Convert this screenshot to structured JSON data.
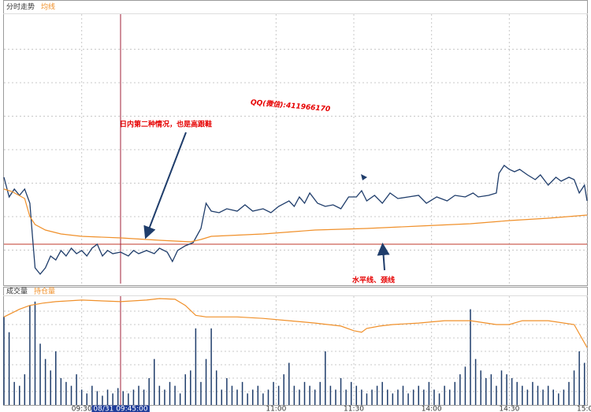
{
  "chart_data": [
    {
      "type": "line",
      "xlim": [
        0,
        225
      ],
      "ylim": [
        0,
        340
      ],
      "hline": {
        "value": 50,
        "color": "#c0392b"
      },
      "series": [
        {
          "name": "分时走势",
          "color": "#1f3d6b",
          "x": [
            0,
            2,
            4,
            6,
            8,
            10,
            11,
            12,
            14,
            16,
            18,
            20,
            22,
            24,
            26,
            28,
            30,
            32,
            34,
            36,
            38,
            40,
            42,
            45,
            48,
            50,
            52,
            55,
            58,
            60,
            63,
            65,
            67,
            70,
            73,
            76,
            78,
            80,
            83,
            86,
            90,
            93,
            96,
            100,
            103,
            106,
            110,
            112,
            114,
            116,
            118,
            121,
            124,
            127,
            130,
            133,
            136,
            138,
            140,
            143,
            146,
            149,
            152,
            156,
            160,
            163,
            167,
            171,
            174,
            178,
            181,
            183,
            187,
            190,
            191,
            193,
            195,
            197,
            199,
            202,
            205,
            207,
            210,
            213,
            215,
            218,
            220,
            222,
            224,
            225
          ],
          "values": [
            135,
            110,
            120,
            112,
            120,
            102,
            60,
            20,
            12,
            20,
            35,
            30,
            42,
            35,
            45,
            38,
            42,
            35,
            45,
            50,
            35,
            42,
            38,
            40,
            35,
            42,
            38,
            42,
            38,
            45,
            40,
            28,
            42,
            48,
            52,
            70,
            102,
            92,
            90,
            95,
            92,
            100,
            92,
            95,
            90,
            98,
            105,
            98,
            110,
            102,
            115,
            102,
            98,
            100,
            95,
            110,
            110,
            118,
            105,
            112,
            102,
            115,
            108,
            110,
            112,
            102,
            110,
            105,
            112,
            110,
            115,
            110,
            112,
            115,
            140,
            150,
            145,
            142,
            145,
            138,
            132,
            138,
            125,
            135,
            130,
            135,
            132,
            115,
            125,
            105
          ]
        },
        {
          "name": "均线",
          "color": "#f0902a",
          "x": [
            0,
            3,
            8,
            10,
            12,
            16,
            22,
            30,
            45,
            60,
            72,
            76,
            80,
            100,
            120,
            140,
            160,
            180,
            195,
            210,
            225
          ],
          "values": [
            120,
            117,
            108,
            85,
            75,
            68,
            63,
            60,
            58,
            55,
            53,
            56,
            60,
            63,
            68,
            70,
            73,
            76,
            80,
            83,
            87
          ]
        }
      ],
      "annotations": [
        "日内第二种情况，也是高跟鞋",
        "QQ(微信):411966170",
        "水平线、颈线"
      ]
    },
    {
      "type": "bar",
      "xlim": [
        0,
        225
      ],
      "ylim": [
        0,
        140
      ],
      "xticks": [
        {
          "value": 30,
          "label": "09:30"
        },
        {
          "value": 105,
          "label": "11:00"
        },
        {
          "value": 135,
          "label": "11:30"
        },
        {
          "value": 165,
          "label": "14:00"
        },
        {
          "value": 195,
          "label": "14:30"
        },
        {
          "value": 225,
          "label": "15:00"
        }
      ],
      "cursor": {
        "value": 45,
        "label": "08/31 09:45:00",
        "color": "#a0203a"
      },
      "series": [
        {
          "name": "成交量",
          "color": "#1f3d6b",
          "x": [
            0,
            2,
            4,
            6,
            8,
            10,
            12,
            14,
            16,
            18,
            20,
            22,
            24,
            26,
            28,
            30,
            32,
            34,
            36,
            38,
            40,
            42,
            44,
            46,
            48,
            50,
            52,
            54,
            56,
            58,
            60,
            62,
            64,
            66,
            68,
            70,
            72,
            74,
            76,
            78,
            80,
            82,
            84,
            86,
            88,
            90,
            92,
            94,
            96,
            98,
            100,
            102,
            104,
            106,
            108,
            110,
            112,
            114,
            116,
            118,
            120,
            122,
            124,
            126,
            128,
            130,
            132,
            134,
            136,
            138,
            140,
            142,
            144,
            146,
            148,
            150,
            152,
            154,
            156,
            158,
            160,
            162,
            164,
            166,
            168,
            170,
            172,
            174,
            176,
            178,
            180,
            182,
            184,
            186,
            188,
            190,
            192,
            194,
            196,
            198,
            200,
            202,
            204,
            206,
            208,
            210,
            212,
            214,
            216,
            218,
            220,
            222,
            224
          ],
          "values": [
            115,
            95,
            30,
            25,
            40,
            130,
            135,
            80,
            60,
            45,
            70,
            35,
            30,
            25,
            40,
            20,
            15,
            25,
            18,
            12,
            20,
            15,
            22,
            18,
            15,
            20,
            25,
            20,
            35,
            60,
            25,
            20,
            30,
            25,
            15,
            40,
            45,
            100,
            30,
            60,
            100,
            45,
            20,
            35,
            25,
            20,
            30,
            15,
            20,
            25,
            15,
            20,
            30,
            25,
            40,
            55,
            25,
            20,
            30,
            25,
            20,
            30,
            70,
            25,
            20,
            35,
            20,
            30,
            25,
            20,
            15,
            20,
            25,
            30,
            20,
            15,
            20,
            25,
            15,
            20,
            25,
            20,
            30,
            20,
            15,
            25,
            20,
            30,
            40,
            50,
            125,
            60,
            45,
            35,
            40,
            25,
            45,
            40,
            35,
            30,
            25,
            20,
            30,
            25,
            20,
            25,
            20,
            15,
            20,
            30,
            45,
            70,
            55
          ]
        },
        {
          "name": "持仓量",
          "color": "#f0902a",
          "type": "line",
          "x": [
            0,
            3,
            6,
            10,
            15,
            20,
            30,
            45,
            55,
            60,
            66,
            70,
            74,
            78,
            85,
            90,
            100,
            110,
            120,
            130,
            135,
            138,
            140,
            145,
            150,
            160,
            170,
            180,
            190,
            195,
            200,
            210,
            220,
            225
          ],
          "values": [
            115,
            120,
            125,
            130,
            133,
            135,
            137,
            135,
            137,
            139,
            138,
            130,
            117,
            115,
            115,
            115,
            113,
            110,
            107,
            103,
            97,
            95,
            100,
            103,
            105,
            107,
            110,
            110,
            105,
            105,
            110,
            110,
            105,
            75
          ]
        }
      ]
    }
  ]
}
